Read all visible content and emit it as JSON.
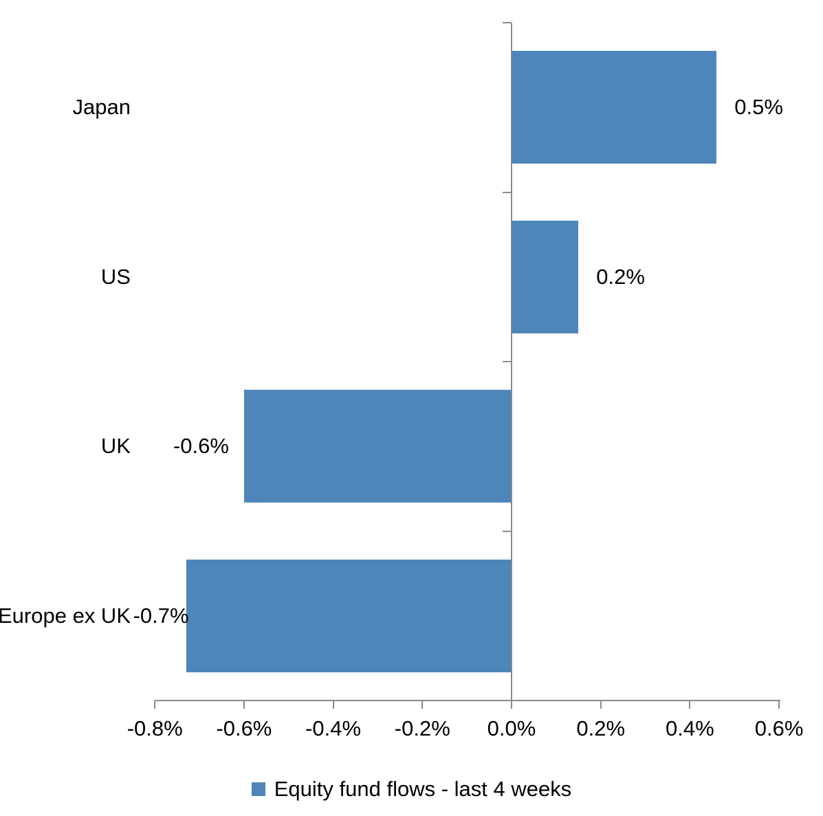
{
  "chart_data": {
    "type": "bar",
    "orientation": "horizontal",
    "title": "",
    "xlabel": "",
    "ylabel": "",
    "categories": [
      "Japan",
      "US",
      "UK",
      "Europe ex UK"
    ],
    "values": [
      0.46,
      0.15,
      -0.6,
      -0.73
    ],
    "data_labels": [
      "0.5%",
      "0.2%",
      "-0.6%",
      "-0.7%"
    ],
    "series": [
      {
        "name": "Equity fund flows - last 4 weeks",
        "values": [
          0.46,
          0.15,
          -0.6,
          -0.73
        ]
      }
    ],
    "x_ticks": [
      "-0.8%",
      "-0.6%",
      "-0.4%",
      "-0.2%",
      "0.0%",
      "0.2%",
      "0.4%",
      "0.6%"
    ],
    "x_tick_values": [
      -0.8,
      -0.6,
      -0.4,
      -0.2,
      0.0,
      0.2,
      0.4,
      0.6
    ],
    "xlim": [
      -0.8,
      0.6
    ],
    "grid": false,
    "legend_position": "bottom"
  },
  "legend": {
    "label": "Equity fund flows - last 4 weeks",
    "marker_color": "#4E86BC"
  },
  "colors": {
    "bar": "#4E86BC",
    "axis": "#898989",
    "text": "#000000",
    "background": "#FFFFFF"
  }
}
